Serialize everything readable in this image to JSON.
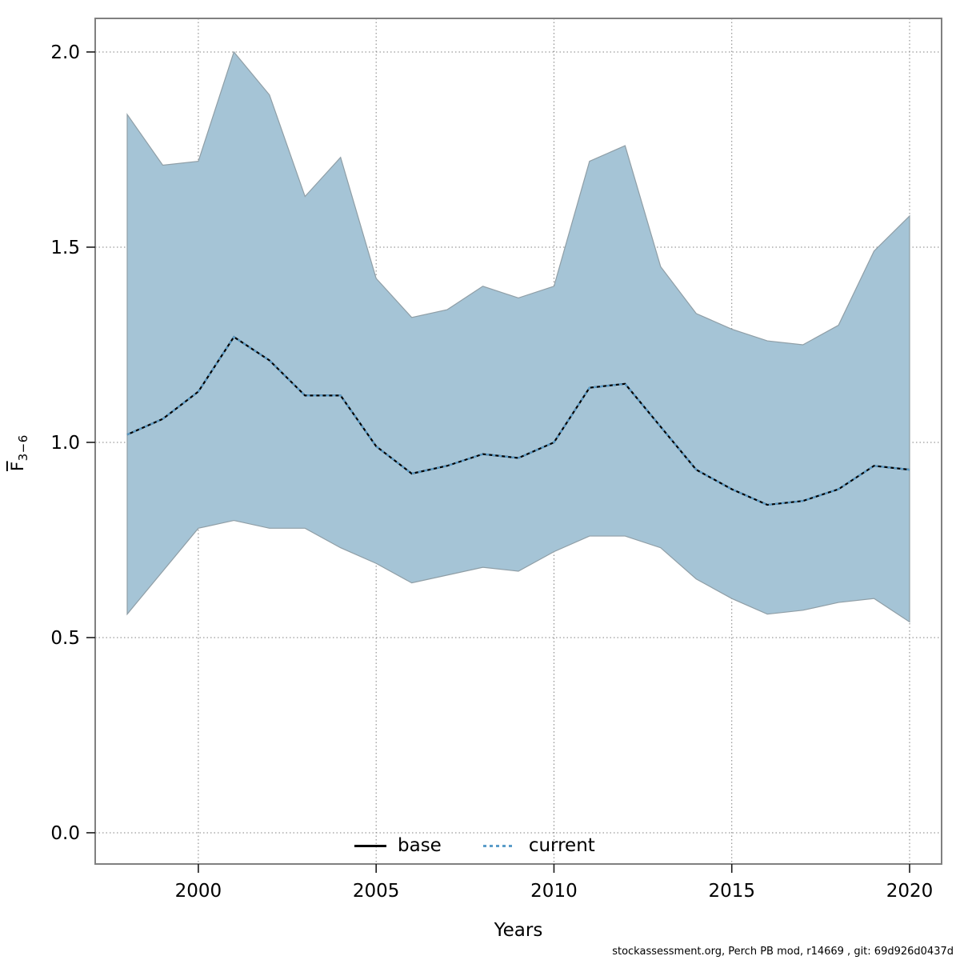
{
  "chart_data": {
    "type": "line",
    "title": "",
    "xlabel": "Years",
    "ylabel": "F̄3−6",
    "ylabel_main": "F",
    "ylabel_sub": "3−6",
    "x": [
      1998,
      1999,
      2000,
      2001,
      2002,
      2003,
      2004,
      2005,
      2006,
      2007,
      2008,
      2009,
      2010,
      2011,
      2012,
      2013,
      2014,
      2015,
      2016,
      2017,
      2018,
      2019,
      2020
    ],
    "series": [
      {
        "name": "base",
        "style": "solid",
        "color": "#000000",
        "values": [
          1.02,
          1.06,
          1.13,
          1.27,
          1.21,
          1.12,
          1.12,
          0.99,
          0.92,
          0.94,
          0.97,
          0.96,
          1.0,
          1.14,
          1.15,
          1.04,
          0.93,
          0.88,
          0.84,
          0.85,
          0.88,
          0.94,
          0.93
        ]
      },
      {
        "name": "current",
        "style": "dotted",
        "color": "#5b9dc9",
        "values": [
          1.02,
          1.06,
          1.13,
          1.27,
          1.21,
          1.12,
          1.12,
          0.99,
          0.92,
          0.94,
          0.97,
          0.96,
          1.0,
          1.14,
          1.15,
          1.04,
          0.93,
          0.88,
          0.84,
          0.85,
          0.88,
          0.94,
          0.93
        ]
      }
    ],
    "band": {
      "name": "confidence-interval",
      "fill": "#a5c4d6",
      "edge": "#8f9ea6",
      "upper": [
        1.84,
        1.71,
        1.72,
        2.0,
        1.89,
        1.63,
        1.73,
        1.42,
        1.32,
        1.34,
        1.4,
        1.37,
        1.4,
        1.72,
        1.76,
        1.45,
        1.33,
        1.29,
        1.26,
        1.25,
        1.3,
        1.49,
        1.58
      ],
      "lower": [
        0.56,
        0.67,
        0.78,
        0.8,
        0.78,
        0.78,
        0.73,
        0.69,
        0.64,
        0.66,
        0.68,
        0.67,
        0.72,
        0.76,
        0.76,
        0.73,
        0.65,
        0.6,
        0.56,
        0.57,
        0.59,
        0.6,
        0.54
      ]
    },
    "x_ticks": [
      2000,
      2005,
      2010,
      2015,
      2020
    ],
    "y_ticks": [
      0.0,
      0.5,
      1.0,
      1.5,
      2.0
    ],
    "xlim": [
      1997.1,
      2020.9
    ],
    "ylim": [
      -0.08,
      2.086
    ],
    "grid": true,
    "legend_position": "bottom-center-inside"
  },
  "legend": {
    "base_label": "base",
    "current_label": "current"
  },
  "footer": {
    "text": "stockassessment.org, Perch PB mod, r14669 , git: 69d926d0437d"
  },
  "colors": {
    "band_fill": "#a5c4d6",
    "band_edge": "#8f9ea6",
    "base_line": "#000000",
    "current_line": "#5b9dc9",
    "grid": "#808080",
    "plot_border": "#808080",
    "tick": "#1a1a1a",
    "text": "#000000",
    "background": "#ffffff"
  }
}
